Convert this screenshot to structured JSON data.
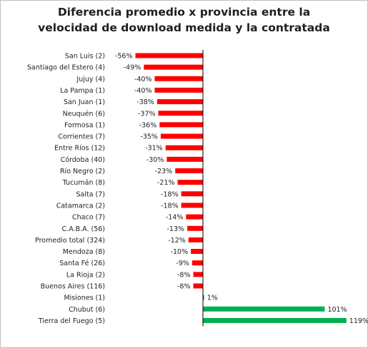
{
  "chart_data": {
    "type": "bar",
    "orientation": "horizontal",
    "title_lines": [
      "Diferencia promedio x provincia entre la",
      "velocidad de download medida y la contratada"
    ],
    "categories": [
      "San Luis (2)",
      "Santiago del Estero (4)",
      "Jujuy (4)",
      "La Pampa (1)",
      "San Juan (1)",
      "Neuquén (6)",
      "Formosa (1)",
      "Corrientes (7)",
      "Entre Ríos (12)",
      "Córdoba (40)",
      "Río Negro (2)",
      "Tucumán (8)",
      "Salta (7)",
      "Catamarca (2)",
      "Chaco (7)",
      "C.A.B.A. (56)",
      "Promedio total (324)",
      "Mendoza (8)",
      "Santa Fé (26)",
      "La Rioja (2)",
      "Buenos Aires (116)",
      "Misiones (1)",
      "Chubut (6)",
      "Tierra del Fuego (5)"
    ],
    "values": [
      -56,
      -49,
      -40,
      -40,
      -38,
      -37,
      -36,
      -35,
      -31,
      -30,
      -23,
      -21,
      -18,
      -18,
      -14,
      -13,
      -12,
      -10,
      -9,
      -8,
      -8,
      1,
      101,
      119
    ],
    "value_labels": [
      "-56%",
      "-49%",
      "-40%",
      "-40%",
      "-38%",
      "-37%",
      "-36%",
      "-35%",
      "-31%",
      "-30%",
      "-23%",
      "-21%",
      "-18%",
      "-18%",
      "-14%",
      "-13%",
      "-12%",
      "-10%",
      "-9%",
      "-8%",
      "-8%",
      "1%",
      "101%",
      "119%"
    ],
    "unit": "%",
    "xlim": [
      -56,
      119
    ],
    "grid": false,
    "legend": "none",
    "colors": {
      "negative": "#ff0000",
      "positive": "#00b050",
      "axis": "#000000",
      "text": "#1f1f1f"
    }
  }
}
